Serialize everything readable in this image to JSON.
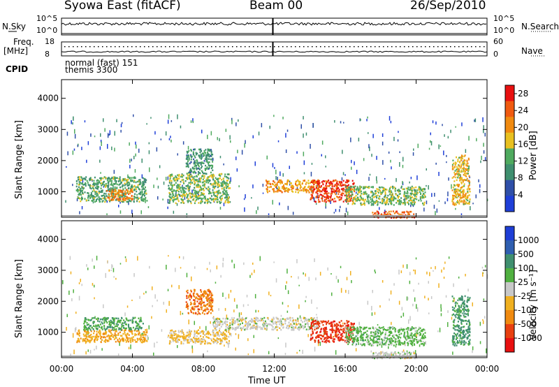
{
  "header": {
    "station": "Syowa East (fitACF)",
    "beam": "Beam 00",
    "date": "26/Sep/2010"
  },
  "summary_panels": {
    "nsky_label": "N.Sky",
    "nsearch_label": "N.Search",
    "nsky_ticks": [
      "10^5",
      "10^0"
    ],
    "nsearch_ticks": [
      "10^5",
      "10^0"
    ],
    "freq_label": "Freq.",
    "freq_unit": "[MHz]",
    "freq_ticks": [
      "18",
      "8"
    ],
    "nave_label": "Nave",
    "nave_ticks": [
      "60",
      "0"
    ],
    "cpid_label": "CPID",
    "cpid_lines": [
      "normal (fast) 151",
      "themis 3300"
    ]
  },
  "colors": {
    "power_scale": [
      "#1f3fd8",
      "#2f4fa8",
      "#3f8f6f",
      "#4faa5f",
      "#e8c020",
      "#f08a10",
      "#f05a10",
      "#e81010"
    ],
    "velocity_scale": [
      "#1e3ed6",
      "#2f5fb0",
      "#3f8f6f",
      "#50b040",
      "#c8c8c8",
      "#f0b020",
      "#f08a10",
      "#e84010",
      "#e81010"
    ],
    "ground_scatter": "#9a9a9a"
  },
  "chart_data": [
    {
      "type": "heatmap",
      "title": "",
      "xlabel": "Time UT",
      "ylabel": "Slant Range [km]",
      "x_ticks": [
        "00:00",
        "04:00",
        "08:00",
        "12:00",
        "16:00",
        "20:00",
        "00:00"
      ],
      "y_ticks": [
        "1000",
        "2000",
        "3000",
        "4000"
      ],
      "xlim_hours": [
        0,
        24
      ],
      "ylim_km": [
        180,
        4600
      ],
      "colorbar": {
        "label": "Power [dB]",
        "ticks": [
          "4",
          "8",
          "12",
          "16",
          "20",
          "24",
          "28"
        ],
        "range": [
          0,
          30
        ]
      },
      "echo_regions": [
        {
          "t0": 0.8,
          "t1": 4.8,
          "r0": 700,
          "r1": 1500,
          "level": 12
        },
        {
          "t0": 2.5,
          "t1": 4.0,
          "r0": 750,
          "r1": 1100,
          "level": 22
        },
        {
          "t0": 6.0,
          "t1": 9.5,
          "r0": 650,
          "r1": 1600,
          "level": 14
        },
        {
          "t0": 7.0,
          "t1": 8.5,
          "r0": 1600,
          "r1": 2400,
          "level": 10
        },
        {
          "t0": 11.5,
          "t1": 14.5,
          "r0": 1000,
          "r1": 1400,
          "level": 20
        },
        {
          "t0": 14.0,
          "t1": 16.5,
          "r0": 700,
          "r1": 1400,
          "level": 26
        },
        {
          "t0": 16.0,
          "t1": 20.5,
          "r0": 600,
          "r1": 1200,
          "level": 14
        },
        {
          "t0": 17.5,
          "t1": 20.0,
          "r0": 180,
          "r1": 400,
          "level": 24
        },
        {
          "t0": 22.0,
          "t1": 23.0,
          "r0": 600,
          "r1": 2200,
          "level": 18
        }
      ]
    },
    {
      "type": "heatmap",
      "title": "",
      "xlabel": "Time UT",
      "ylabel": "Slant Range [km]",
      "x_ticks": [
        "00:00",
        "04:00",
        "08:00",
        "12:00",
        "16:00",
        "20:00",
        "00:00"
      ],
      "y_ticks": [
        "1000",
        "2000",
        "3000",
        "4000"
      ],
      "xlim_hours": [
        0,
        24
      ],
      "ylim_km": [
        180,
        4600
      ],
      "colorbar": {
        "label": "Velocity [m s⁻¹]",
        "ticks": [
          "1000",
          "500",
          "100",
          "25",
          "-25",
          "-100",
          "-500",
          "-1000"
        ],
        "range": [
          -1000,
          1000
        ]
      },
      "echo_regions": [
        {
          "t0": 0.8,
          "t1": 4.8,
          "r0": 700,
          "r1": 1100,
          "level": -300
        },
        {
          "t0": 1.2,
          "t1": 4.6,
          "r0": 1100,
          "r1": 1500,
          "level": 300
        },
        {
          "t0": 6.0,
          "t1": 9.5,
          "r0": 650,
          "r1": 1100,
          "level": -150
        },
        {
          "t0": 7.0,
          "t1": 8.5,
          "r0": 1600,
          "r1": 2400,
          "level": -500
        },
        {
          "t0": 8.5,
          "t1": 14.5,
          "r0": 1100,
          "r1": 1500,
          "level": 0
        },
        {
          "t0": 14.0,
          "t1": 16.5,
          "r0": 700,
          "r1": 1400,
          "level": -700
        },
        {
          "t0": 16.0,
          "t1": 20.5,
          "r0": 600,
          "r1": 1200,
          "level": 200
        },
        {
          "t0": 17.5,
          "t1": 20.0,
          "r0": 180,
          "r1": 400,
          "level": 0
        },
        {
          "t0": 22.0,
          "t1": 23.0,
          "r0": 600,
          "r1": 2200,
          "level": 400
        }
      ]
    }
  ]
}
